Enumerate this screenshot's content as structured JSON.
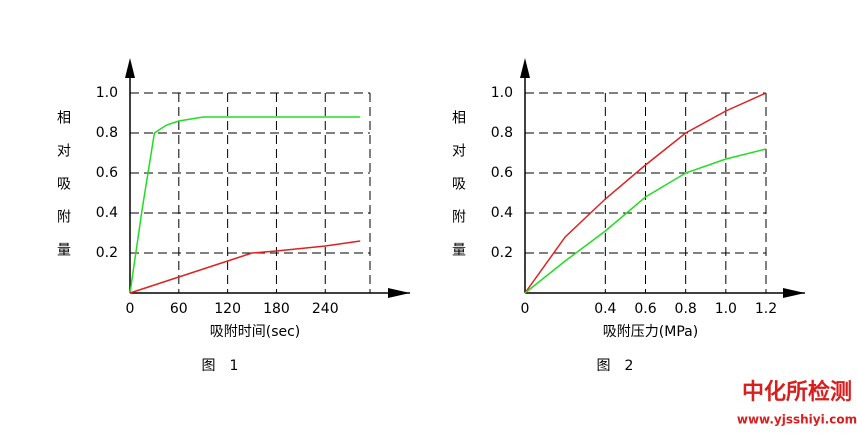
{
  "chart_data": [
    {
      "type": "line",
      "caption": "图　1",
      "ylabel": "相对吸附量",
      "xlabel": "吸附时间(sec)",
      "x": [
        0,
        15,
        30,
        45,
        60,
        90,
        120,
        150,
        180,
        240,
        283
      ],
      "series": [
        {
          "color": "#22dd22",
          "values": [
            0,
            0.42,
            0.8,
            0.84,
            0.86,
            0.88,
            0.88,
            0.88,
            0.88,
            0.88,
            0.88
          ]
        },
        {
          "color": "#dd2222",
          "values": [
            0,
            0.02,
            0.04,
            0.06,
            0.08,
            0.12,
            0.16,
            0.2,
            0.21,
            0.235,
            0.26
          ]
        }
      ],
      "xlim": [
        0,
        295
      ],
      "ylim": [
        0,
        1
      ],
      "xticks": [
        0,
        60,
        120,
        180,
        240
      ],
      "yticks": [
        0.2,
        {
          "value": 0.4,
          "label": "0.4"
        },
        {
          "value": 0.6,
          "label": "0.6"
        },
        {
          "value": 0.8,
          "label": "0.8"
        },
        {
          "value": 1,
          "label": "1.0"
        }
      ],
      "grid": true
    },
    {
      "type": "line",
      "caption": "图　2",
      "ylabel": "相对吸附量",
      "xlabel": "吸附压力(MPa)",
      "x": [
        0,
        0.2,
        0.4,
        0.6,
        0.8,
        1.0,
        1.2
      ],
      "series": [
        {
          "color": "#dd2222",
          "values": [
            0,
            0.28,
            0.47,
            0.64,
            0.8,
            0.91,
            1.0
          ]
        },
        {
          "color": "#22dd22",
          "values": [
            0,
            0.16,
            0.31,
            0.48,
            0.6,
            0.67,
            0.72
          ]
        }
      ],
      "xlim": [
        0,
        1.2
      ],
      "ylim": [
        0,
        1
      ],
      "xticks": [
        0,
        0.4,
        0.6,
        0.8,
        {
          "value": 1,
          "label": "1.0"
        },
        1.2
      ],
      "yticks": [
        0.2,
        {
          "value": 0.4,
          "label": "0.4"
        },
        {
          "value": 0.6,
          "label": "0.6"
        },
        {
          "value": 0.8,
          "label": "0.8"
        },
        {
          "value": 1,
          "label": "1.0"
        }
      ],
      "grid": true
    }
  ],
  "watermark": {
    "brand": "中化所检测",
    "url": "www.yjsshiyi.com"
  }
}
